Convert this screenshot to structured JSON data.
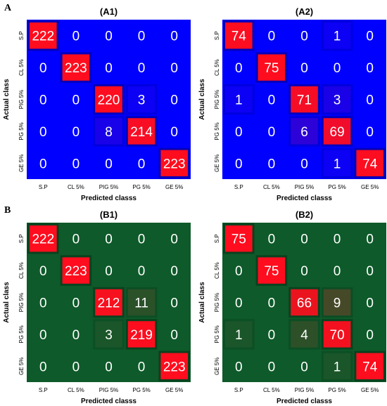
{
  "sections": [
    {
      "label": "A",
      "panels": [
        0,
        1
      ]
    },
    {
      "label": "B",
      "panels": [
        2,
        3
      ]
    }
  ],
  "colors": {
    "blue_bg": "#0000ff",
    "green_bg": "#0e5a2a",
    "high": "#ff0d1e"
  },
  "chart_data": [
    {
      "type": "heatmap",
      "title": "(A1)",
      "xlabel": "Predicted classs",
      "ylabel": "Actual class",
      "categories": [
        "S.P",
        "CL 5%",
        "PIG 5%",
        "PG 5%",
        "GE 5%"
      ],
      "matrix": [
        [
          222,
          0,
          0,
          0,
          0
        ],
        [
          0,
          223,
          0,
          0,
          0
        ],
        [
          0,
          0,
          220,
          3,
          0
        ],
        [
          0,
          0,
          8,
          214,
          0
        ],
        [
          0,
          0,
          0,
          0,
          223
        ]
      ],
      "max": 223,
      "colormap": [
        "#0000ff",
        "#ff0d1e"
      ]
    },
    {
      "type": "heatmap",
      "title": "(A2)",
      "xlabel": "Predicted classs",
      "ylabel": "Actual class",
      "categories": [
        "S.P",
        "CL 5%",
        "PIG 5%",
        "PG 5%",
        "GE 5%"
      ],
      "matrix": [
        [
          74,
          0,
          0,
          1,
          0
        ],
        [
          0,
          75,
          0,
          0,
          0
        ],
        [
          1,
          0,
          71,
          3,
          0
        ],
        [
          0,
          0,
          6,
          69,
          0
        ],
        [
          0,
          0,
          0,
          1,
          74
        ]
      ],
      "max": 75,
      "colormap": [
        "#0000ff",
        "#ff0d1e"
      ]
    },
    {
      "type": "heatmap",
      "title": "(B1)",
      "xlabel": "Predicted classs",
      "ylabel": "Actual class",
      "categories": [
        "S.P",
        "CL 5%",
        "PIG 5%",
        "PG 5%",
        "GE 5%"
      ],
      "matrix": [
        [
          222,
          0,
          0,
          0,
          0
        ],
        [
          0,
          223,
          0,
          0,
          0
        ],
        [
          0,
          0,
          212,
          11,
          0
        ],
        [
          0,
          0,
          3,
          219,
          0
        ],
        [
          0,
          0,
          0,
          0,
          223
        ]
      ],
      "max": 223,
      "colormap": [
        "#0e5a2a",
        "#ff0d1e"
      ]
    },
    {
      "type": "heatmap",
      "title": "(B2)",
      "xlabel": "Predicted classs",
      "ylabel": "Actual class",
      "categories": [
        "S.P",
        "CL 5%",
        "PIG 5%",
        "PG 5%",
        "GE 5%"
      ],
      "matrix": [
        [
          75,
          0,
          0,
          0,
          0
        ],
        [
          0,
          75,
          0,
          0,
          0
        ],
        [
          0,
          0,
          66,
          9,
          0
        ],
        [
          1,
          0,
          4,
          70,
          0
        ],
        [
          0,
          0,
          0,
          1,
          74
        ]
      ],
      "max": 75,
      "colormap": [
        "#0e5a2a",
        "#ff0d1e"
      ]
    }
  ]
}
